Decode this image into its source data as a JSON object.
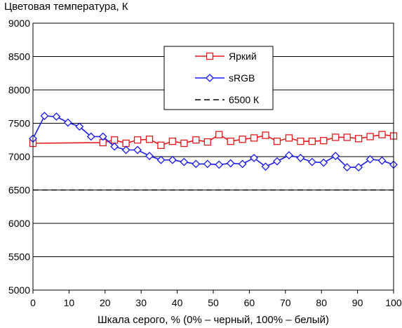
{
  "chart_data": {
    "type": "line",
    "title": "Цветовая температура, К",
    "xlabel": "Шкала серого, % (0% – черный, 100% – белый)",
    "ylabel": "",
    "xlim": [
      0,
      100
    ],
    "ylim": [
      5000,
      9000
    ],
    "x_ticks": [
      0,
      10,
      20,
      30,
      40,
      50,
      60,
      70,
      80,
      90,
      100
    ],
    "y_ticks": [
      5000,
      5500,
      6000,
      6500,
      7000,
      7500,
      8000,
      8500,
      9000
    ],
    "grid": "horizontal",
    "legend_position": "top-center",
    "series": [
      {
        "name": "Яркий",
        "color": "#e31a1c",
        "marker": "square",
        "x": [
          0,
          19.4,
          22.6,
          25.8,
          29,
          32.3,
          35.5,
          38.7,
          41.9,
          45.2,
          48.4,
          51.6,
          54.8,
          58.1,
          61.3,
          64.5,
          67.7,
          71,
          74.2,
          77.4,
          80.6,
          83.9,
          87.1,
          90.3,
          93.5,
          96.8,
          100
        ],
        "y": [
          7200,
          7210,
          7250,
          7200,
          7250,
          7260,
          7170,
          7230,
          7200,
          7250,
          7220,
          7330,
          7230,
          7260,
          7280,
          7320,
          7230,
          7280,
          7230,
          7230,
          7240,
          7290,
          7290,
          7270,
          7300,
          7330,
          7310
        ]
      },
      {
        "name": "sRGB",
        "color": "#1a1aeb",
        "marker": "diamond",
        "x": [
          0,
          3.2,
          6.5,
          9.7,
          12.9,
          16.1,
          19.4,
          22.6,
          25.8,
          29,
          32.3,
          35.5,
          38.7,
          41.9,
          45.2,
          48.4,
          51.6,
          54.8,
          58.1,
          61.3,
          64.5,
          67.7,
          71,
          74.2,
          77.4,
          80.6,
          83.9,
          87.1,
          90.3,
          93.5,
          96.8,
          100
        ],
        "y": [
          7270,
          7610,
          7600,
          7510,
          7450,
          7300,
          7300,
          7150,
          7100,
          7100,
          7010,
          6950,
          6950,
          6920,
          6890,
          6890,
          6880,
          6900,
          6890,
          6980,
          6850,
          6930,
          7020,
          6980,
          6920,
          6910,
          7010,
          6840,
          6840,
          6960,
          6940,
          6880
        ]
      },
      {
        "name": "6500 К",
        "color": "#000000",
        "marker": "none",
        "dashed": true,
        "x": [
          0,
          100
        ],
        "y": [
          6500,
          6500
        ]
      }
    ]
  }
}
